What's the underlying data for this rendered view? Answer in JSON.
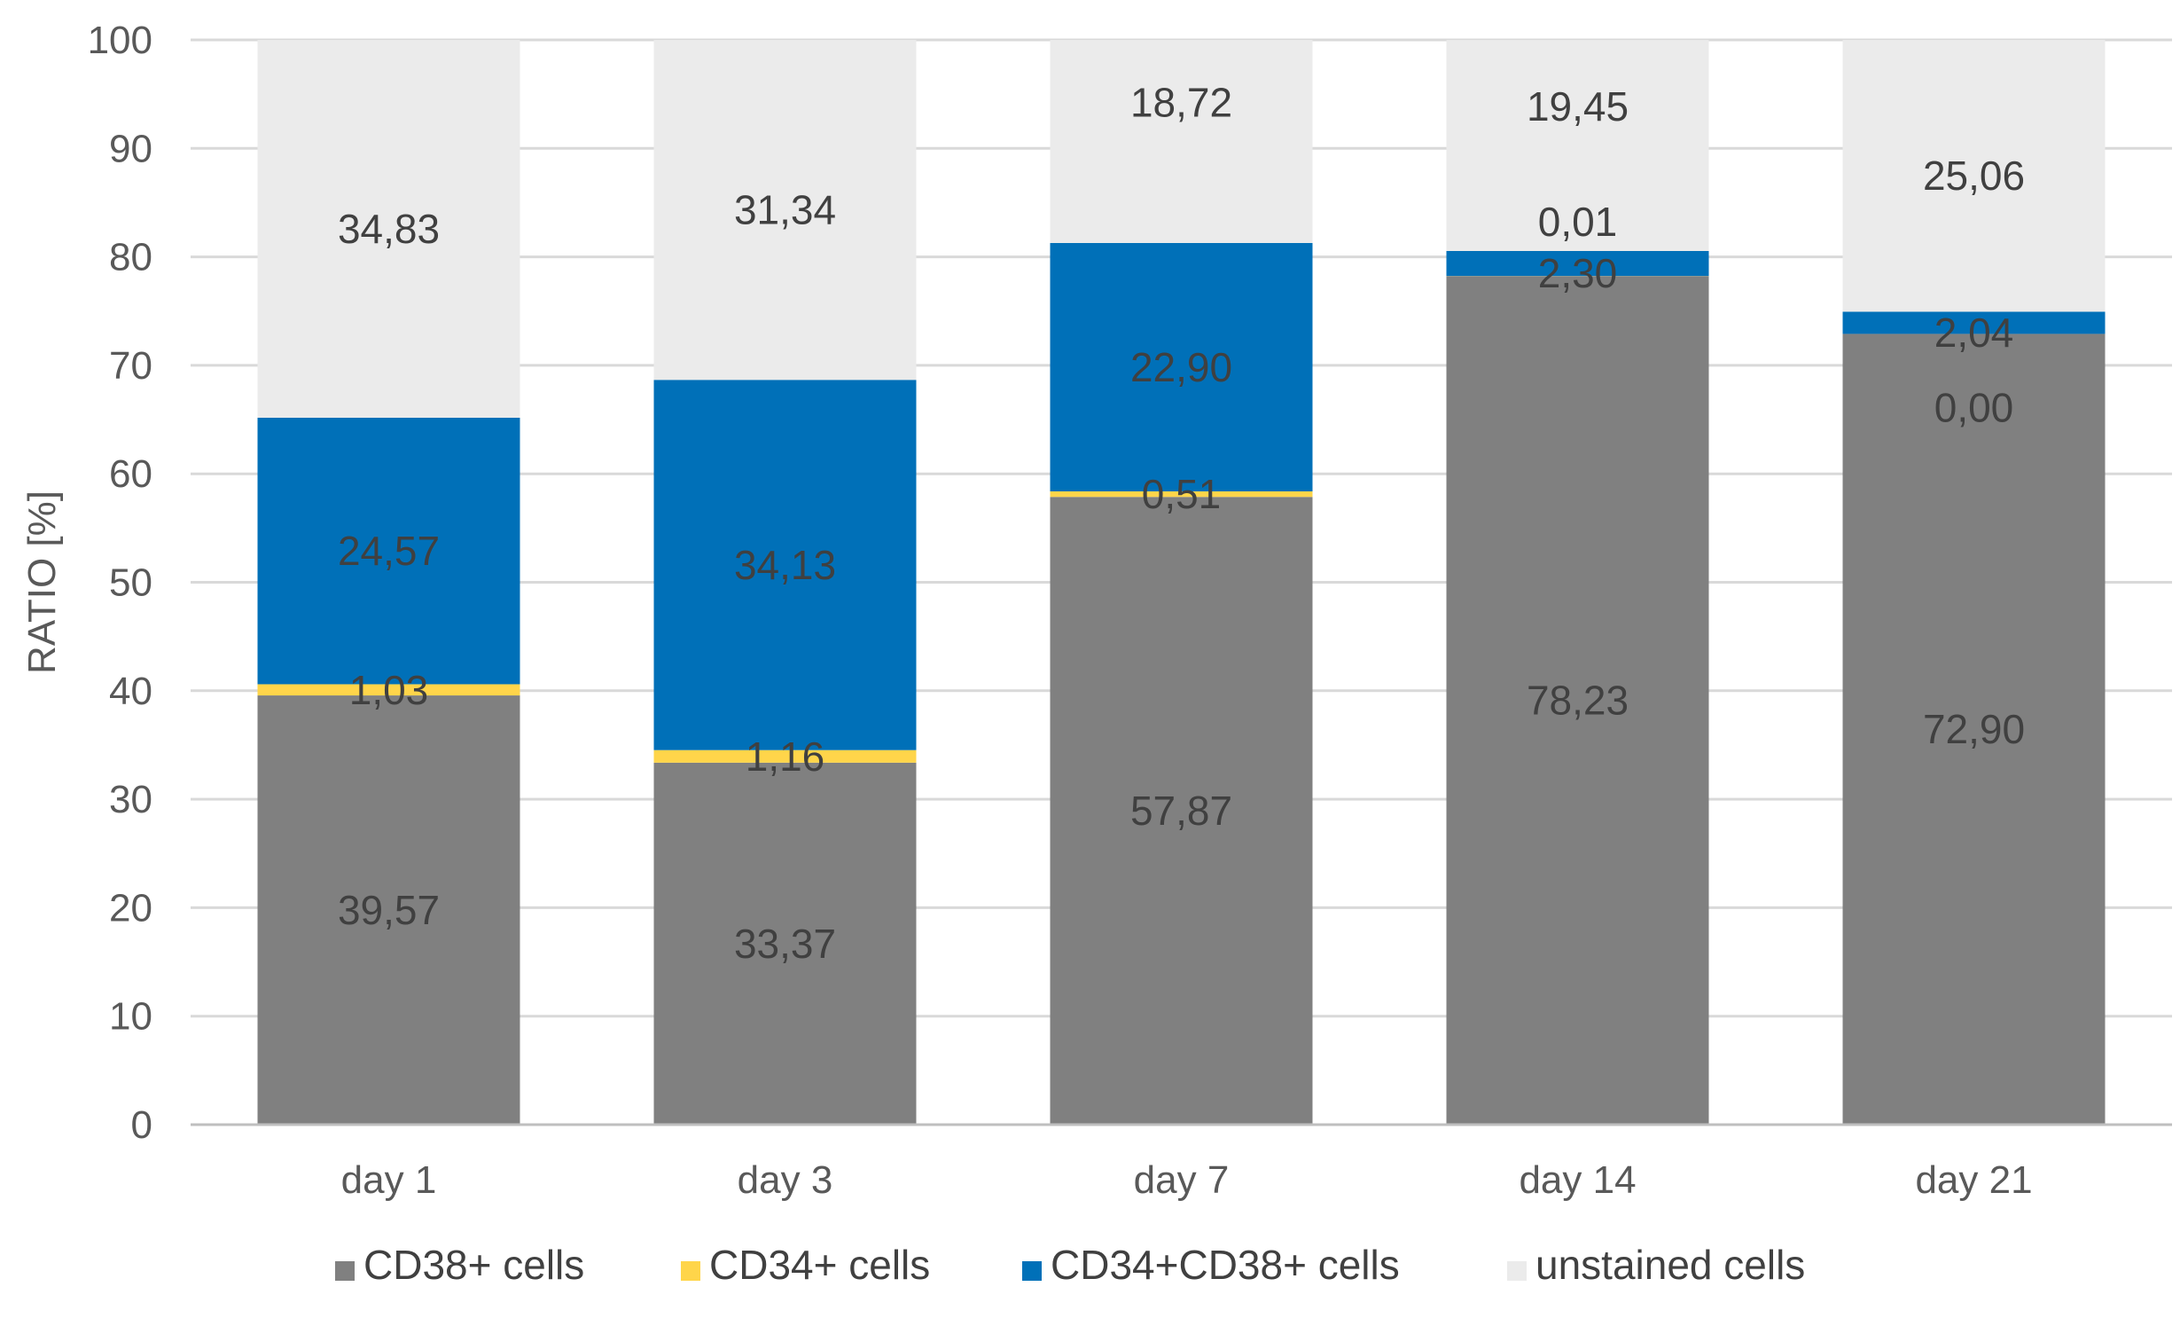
{
  "chart_data": {
    "type": "bar",
    "stacked": true,
    "title": "",
    "xlabel": "",
    "ylabel": "RATIO [%]",
    "ylim": [
      0,
      100
    ],
    "yticks": [
      0,
      10,
      20,
      30,
      40,
      50,
      60,
      70,
      80,
      90,
      100
    ],
    "grid": true,
    "legend_position": "bottom",
    "categories": [
      "day 1",
      "day 3",
      "day 7",
      "day 14",
      "day 21"
    ],
    "series": [
      {
        "name": "CD38+ cells",
        "color": "#808080",
        "values": [
          39.57,
          33.37,
          57.87,
          78.23,
          72.9
        ],
        "labels": [
          "39,57",
          "33,37",
          "57,87",
          "78,23",
          "72,90"
        ]
      },
      {
        "name": "CD34+ cells",
        "color": "#FFD54A",
        "values": [
          1.03,
          1.16,
          0.51,
          0.01,
          0.0
        ],
        "labels": [
          "1,03",
          "1,16",
          "0,51",
          "0,01",
          "0,00"
        ]
      },
      {
        "name": "CD34+CD38+ cells",
        "color": "#0070B8",
        "values": [
          24.57,
          34.13,
          22.9,
          2.3,
          2.04
        ],
        "labels": [
          "24,57",
          "34,13",
          "22,90",
          "2,30",
          "2,04"
        ]
      },
      {
        "name": "unstained cells",
        "color": "#EBEBEB",
        "values": [
          34.83,
          31.34,
          18.72,
          19.45,
          25.06
        ],
        "labels": [
          "34,83",
          "31,34",
          "18,72",
          "19,45",
          "25,06"
        ]
      }
    ]
  }
}
